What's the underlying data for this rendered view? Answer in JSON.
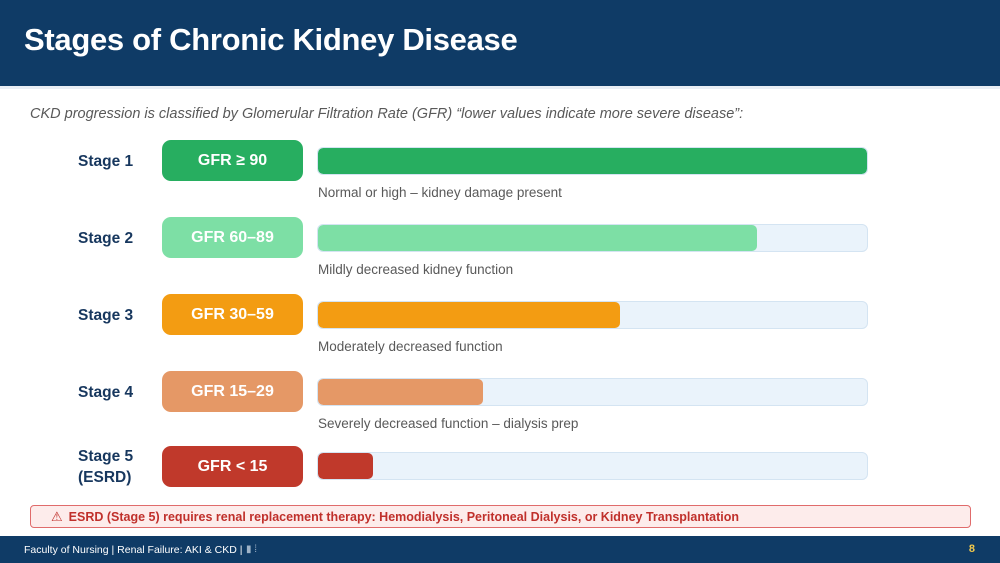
{
  "slide": {
    "title": "Stages of Chronic Kidney Disease",
    "intro": "CKD progression is classified by Glomerular Filtration Rate (GFR)  “lower values indicate more severe disease”:"
  },
  "stages": [
    {
      "label": "Stage 1",
      "label_line2": "",
      "gfr": "GFR ≥ 90",
      "desc": "Normal or high – kidney damage present",
      "fill_fraction": 1.0,
      "pill_color": "#27ae60",
      "bar_color": "#27ae60"
    },
    {
      "label": "Stage 2",
      "label_line2": "",
      "gfr": "GFR 60–89",
      "desc": "Mildly decreased kidney function",
      "fill_fraction": 0.8,
      "pill_color": "#7ddfa5",
      "bar_color": "#7ddfa5"
    },
    {
      "label": "Stage 3",
      "label_line2": "",
      "gfr": "GFR 30–59",
      "desc": "Moderately decreased function",
      "fill_fraction": 0.55,
      "pill_color": "#f39c12",
      "bar_color": "#f39c12"
    },
    {
      "label": "Stage 4",
      "label_line2": "",
      "gfr": "GFR 15–29",
      "desc": "Severely decreased function – dialysis prep",
      "fill_fraction": 0.3,
      "pill_color": "#e59866",
      "bar_color": "#e59866"
    },
    {
      "label": "Stage 5",
      "label_line2": "(ESRD)",
      "gfr": "GFR < 15",
      "desc": "",
      "fill_fraction": 0.1,
      "pill_color": "#c0392b",
      "bar_color": "#c0392b"
    }
  ],
  "warning": {
    "icon": "warning-triangle-icon",
    "text": "ESRD (Stage 5) requires renal replacement therapy: Hemodialysis, Peritoneal Dialysis, or Kidney Transplantation"
  },
  "footer": {
    "text": "Faculty of Nursing  |  Renal Failure: AKI & CKD  |",
    "page_number": "8"
  }
}
